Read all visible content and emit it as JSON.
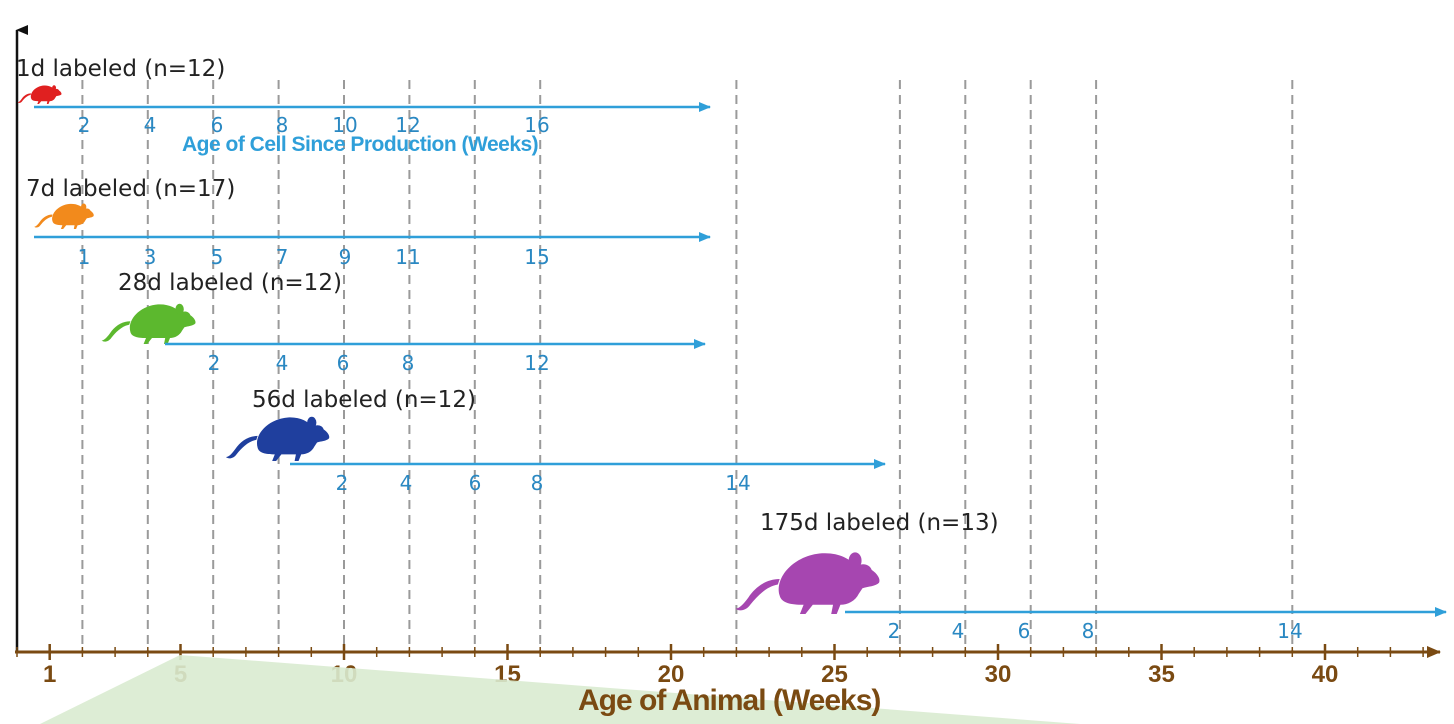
{
  "diagram": {
    "animal_axis": {
      "title": "Age of Animal (Weeks)",
      "tick_labels": [
        "1",
        "5",
        "10",
        "15",
        "20",
        "25",
        "30",
        "35",
        "40"
      ],
      "color": "#7a4a12"
    },
    "cell_axis_title": "Age of Cell Since Production (Weeks)",
    "arrow_color": "#2f9fd9",
    "guide_color": "#9a9a9a",
    "groups": [
      {
        "label": "1d labeled (n=12)",
        "mouse_color": "#e02020",
        "cell_ticks": [
          "2",
          "4",
          "6",
          "8",
          "10",
          "12",
          "16"
        ]
      },
      {
        "label": "7d labeled (n=17)",
        "mouse_color": "#f28a1c",
        "cell_ticks": [
          "1",
          "3",
          "5",
          "7",
          "9",
          "11",
          "15"
        ]
      },
      {
        "label": "28d labeled (n=12)",
        "mouse_color": "#5cb82e",
        "cell_ticks": [
          "2",
          "4",
          "6",
          "8",
          "12"
        ]
      },
      {
        "label": "56d labeled (n=12)",
        "mouse_color": "#1f3f9e",
        "cell_ticks": [
          "2",
          "4",
          "6",
          "8",
          "14"
        ]
      },
      {
        "label": "175d labeled (n=13)",
        "mouse_color": "#a646b0",
        "cell_ticks": [
          "2",
          "4",
          "6",
          "8",
          "14"
        ]
      }
    ]
  }
}
